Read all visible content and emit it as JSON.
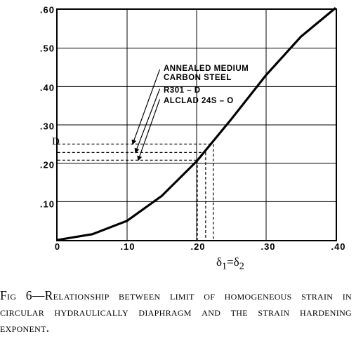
{
  "chart": {
    "type": "line",
    "xlim": [
      0,
      0.4
    ],
    "ylim": [
      0,
      0.6
    ],
    "xtick_step": 0.1,
    "ytick_step": 0.1,
    "xticks": [
      0,
      0.1,
      0.2,
      0.3,
      0.4
    ],
    "yticks": [
      0.1,
      0.2,
      0.3,
      0.4,
      0.5,
      0.6
    ],
    "xtick_labels": [
      "0",
      ".10",
      ".20",
      ".30",
      ".40"
    ],
    "ytick_labels": [
      ".10",
      ".20",
      ".30",
      ".40",
      ".50",
      ".60"
    ],
    "curve_points": [
      {
        "x": 0.0,
        "y": 0.0
      },
      {
        "x": 0.05,
        "y": 0.015
      },
      {
        "x": 0.1,
        "y": 0.05
      },
      {
        "x": 0.15,
        "y": 0.115
      },
      {
        "x": 0.2,
        "y": 0.205
      },
      {
        "x": 0.25,
        "y": 0.315
      },
      {
        "x": 0.3,
        "y": 0.43
      },
      {
        "x": 0.35,
        "y": 0.53
      },
      {
        "x": 0.4,
        "y": 0.605
      }
    ],
    "curve_color": "#000000",
    "curve_width": 3.2,
    "grid_color": "#000000",
    "background_color": "#ffffff",
    "y_axis_label": "D",
    "x_axis_label_html": "δ<sub>1</sub>=δ<sub>2</sub>",
    "annotations": {
      "annealed_line1": "ANNEALED  MEDIUM",
      "annealed_line2": "CARBON  STEEL",
      "r301": "R301 – D",
      "alclad": "ALCLAD  24S – O"
    },
    "reference_lines": [
      {
        "name": "annealed",
        "y": 0.25,
        "x_end": 0.224
      },
      {
        "name": "r301",
        "y": 0.228,
        "x_end": 0.213
      },
      {
        "name": "alclad",
        "y": 0.208,
        "x_end": 0.201
      }
    ],
    "dash_pattern": "4,3",
    "annot_fontsize": 11.5,
    "tick_fontsize": 13
  },
  "caption": {
    "fig_label": "Fig 6",
    "text": "—Relationship between limit of homogeneous strain in circular hydraulically diaphragm and the strain hardening exponent."
  }
}
